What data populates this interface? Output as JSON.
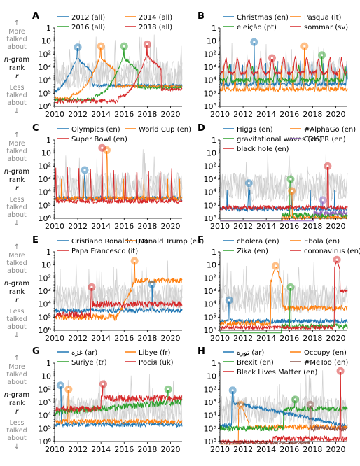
{
  "figure": {
    "side_label": {
      "arrow_up": "↑",
      "more": [
        "More",
        "talked",
        "about"
      ],
      "ngram": "n-gram",
      "rank": "rank",
      "r": "r",
      "less": [
        "Less",
        "talked",
        "about"
      ],
      "arrow_down": "↓"
    }
  },
  "chart_data": [
    {
      "panel": "A",
      "type": "line",
      "x_ticks": [
        2010,
        2012,
        2014,
        2016,
        2018,
        2020
      ],
      "y_ticks": [
        "1",
        "10",
        "10^2",
        "10^3",
        "10^4",
        "10^5",
        "10^6"
      ],
      "ylim": [
        1,
        1000000
      ],
      "y_scale": "log",
      "y_inverted": true,
      "series": [
        {
          "name": "2012 (all)",
          "color": "#1f77b4",
          "peak": [
            2012.0,
            30
          ],
          "base": 100000,
          "shape": "year"
        },
        {
          "name": "2014 (all)",
          "color": "#ff7f0e",
          "peak": [
            2014.0,
            25
          ],
          "base": 120000,
          "shape": "year"
        },
        {
          "name": "2016 (all)",
          "color": "#2ca02c",
          "peak": [
            2016.0,
            25
          ],
          "base": 150000,
          "shape": "year"
        },
        {
          "name": "2018 (all)",
          "color": "#d62728",
          "peak": [
            2018.0,
            18
          ],
          "base": 200000,
          "shape": "year"
        }
      ]
    },
    {
      "panel": "B",
      "type": "line",
      "x_ticks": [
        2010,
        2012,
        2014,
        2016,
        2018,
        2020
      ],
      "y_ticks": [
        "1",
        "10",
        "10^2",
        "10^3",
        "10^4",
        "10^5",
        "10^6"
      ],
      "ylim": [
        1,
        1000000
      ],
      "y_scale": "log",
      "y_inverted": true,
      "series": [
        {
          "name": "Christmas (en)",
          "color": "#1f77b4",
          "peak": [
            2012.95,
            12
          ],
          "base": 20000,
          "shape": "annual_dec"
        },
        {
          "name": "Pasqua (it)",
          "color": "#ff7f0e",
          "peak": [
            2017.3,
            25
          ],
          "base": 50000,
          "shape": "annual_spring"
        },
        {
          "name": "eleição (pt)",
          "color": "#2ca02c",
          "peak": [
            2018.8,
            120
          ],
          "base": 10000,
          "shape": "biennial"
        },
        {
          "name": "sommar (sv)",
          "color": "#d62728",
          "peak": [
            2014.5,
            200
          ],
          "base": 3000,
          "shape": "annual_summer"
        }
      ]
    },
    {
      "panel": "C",
      "type": "line",
      "x_ticks": [
        2010,
        2012,
        2014,
        2016,
        2018,
        2020
      ],
      "y_ticks": [
        "1",
        "10",
        "10^2",
        "10^3",
        "10^4",
        "10^5",
        "10^6"
      ],
      "ylim": [
        1,
        1000000
      ],
      "y_scale": "log",
      "y_inverted": true,
      "series": [
        {
          "name": "Olympics (en)",
          "color": "#1f77b4",
          "peak": [
            2012.6,
            200
          ],
          "base": 30000,
          "shape": "spikes"
        },
        {
          "name": "World Cup (en)",
          "color": "#ff7f0e",
          "peak": [
            2014.5,
            6
          ],
          "base": 30000,
          "shape": "spikes"
        },
        {
          "name": "Super Bowl (en)",
          "color": "#d62728",
          "peak": [
            2014.1,
            4
          ],
          "base": 50000,
          "shape": "annual_feb"
        }
      ]
    },
    {
      "panel": "D",
      "type": "line",
      "x_ticks": [
        2010,
        2012,
        2014,
        2016,
        2018,
        2020
      ],
      "y_ticks": [
        "1",
        "10",
        "10^2",
        "10^3",
        "10^4",
        "10^5",
        "10^6"
      ],
      "ylim": [
        1,
        1000000
      ],
      "y_scale": "log",
      "y_inverted": true,
      "series": [
        {
          "name": "Higgs (en)",
          "color": "#1f77b4",
          "peak": [
            2012.5,
            2000
          ],
          "base": 200000,
          "shape": "spikes"
        },
        {
          "name": "#AlphaGo (en)",
          "color": "#ff7f0e",
          "peak": [
            2016.2,
            8000
          ],
          "base": 800000,
          "shape": "late"
        },
        {
          "name": "gravitational waves (en)",
          "color": "#2ca02c",
          "peak": [
            2016.1,
            1000
          ],
          "base": 600000,
          "shape": "late"
        },
        {
          "name": "CRISPR (en)",
          "color": "#9467bd",
          "peak": [
            2018.9,
            40000
          ],
          "base": 400000,
          "shape": "late"
        },
        {
          "name": "black hole (en)",
          "color": "#d62728",
          "peak": [
            2019.3,
            100
          ],
          "base": 150000,
          "shape": "flat"
        }
      ]
    },
    {
      "panel": "E",
      "type": "line",
      "x_ticks": [
        2010,
        2012,
        2014,
        2016,
        2018,
        2020
      ],
      "y_ticks": [
        "1",
        "10",
        "10^2",
        "10^3",
        "10^4",
        "10^5",
        "10^6"
      ],
      "ylim": [
        1,
        1000000
      ],
      "y_scale": "log",
      "y_inverted": true,
      "series": [
        {
          "name": "Cristiano Ronaldo (pt)",
          "color": "#1f77b4",
          "peak": [
            2018.4,
            300
          ],
          "base": 30000,
          "shape": "flat"
        },
        {
          "name": "Donald Trump (en)",
          "color": "#ff7f0e",
          "peak": [
            2016.9,
            5
          ],
          "base": 100000,
          "shape": "trump"
        },
        {
          "name": "Papa Francesco (it)",
          "color": "#d62728",
          "peak": [
            2013.2,
            500
          ],
          "base": 10000,
          "shape": "pope"
        }
      ]
    },
    {
      "panel": "F",
      "type": "line",
      "x_ticks": [
        2010,
        2012,
        2014,
        2016,
        2018,
        2020
      ],
      "y_ticks": [
        "1",
        "10",
        "10^2",
        "10^3",
        "10^4",
        "10^5",
        "10^6"
      ],
      "ylim": [
        1,
        1000000
      ],
      "y_scale": "log",
      "y_inverted": true,
      "series": [
        {
          "name": "cholera (en)",
          "color": "#1f77b4",
          "peak": [
            2010.8,
            5000
          ],
          "base": 200000,
          "shape": "flat"
        },
        {
          "name": "Ebola (en)",
          "color": "#ff7f0e",
          "peak": [
            2014.8,
            12
          ],
          "base": 300000,
          "shape": "ebola"
        },
        {
          "name": "Zika (en)",
          "color": "#2ca02c",
          "peak": [
            2016.1,
            500
          ],
          "base": 500000,
          "shape": "late"
        },
        {
          "name": "coronavirus (en)",
          "color": "#d62728",
          "peak": [
            2020.1,
            4
          ],
          "base": 600000,
          "shape": "covid"
        }
      ]
    },
    {
      "panel": "G",
      "type": "line",
      "x_ticks": [
        2010,
        2012,
        2014,
        2016,
        2018,
        2020
      ],
      "y_ticks": [
        "1",
        "10",
        "10^2",
        "10^3",
        "10^4",
        "10^5",
        "10^6"
      ],
      "ylim": [
        1,
        1000000
      ],
      "y_scale": "log",
      "y_inverted": true,
      "series": [
        {
          "name": "غزة (ar)",
          "color": "#1f77b4",
          "peak": [
            2010.5,
            50
          ],
          "base": 50000,
          "shape": "flat"
        },
        {
          "name": "Libye (fr)",
          "color": "#ff7f0e",
          "peak": [
            2011.2,
            100
          ],
          "base": 30000,
          "shape": "flat"
        },
        {
          "name": "Suriye (tr)",
          "color": "#2ca02c",
          "peak": [
            2019.8,
            100
          ],
          "base": 5000,
          "shape": "syria"
        },
        {
          "name": "Росія (uk)",
          "color": "#d62728",
          "peak": [
            2014.2,
            40
          ],
          "base": 2000,
          "shape": "russia"
        }
      ]
    },
    {
      "panel": "H",
      "type": "line",
      "x_ticks": [
        2010,
        2012,
        2014,
        2016,
        2018,
        2020
      ],
      "y_ticks": [
        "1",
        "10",
        "10^2",
        "10^3",
        "10^4",
        "10^5",
        "10^6"
      ],
      "ylim": [
        1,
        1000000
      ],
      "y_scale": "log",
      "y_inverted": true,
      "series": [
        {
          "name": "ثورة (ar)",
          "color": "#1f77b4",
          "peak": [
            2011.1,
            120
          ],
          "base": 30000,
          "shape": "revolution"
        },
        {
          "name": "Occupy (en)",
          "color": "#ff7f0e",
          "peak": [
            2011.8,
            1500
          ],
          "base": 300000,
          "shape": "occupy"
        },
        {
          "name": "Brexit (en)",
          "color": "#2ca02c",
          "peak": [
            2016.5,
            600
          ],
          "base": 5000,
          "shape": "brexit"
        },
        {
          "name": "#MeToo (en)",
          "color": "#8c564b",
          "peak": [
            2017.8,
            1500
          ],
          "base": 200000,
          "shape": "metoo"
        },
        {
          "name": "Black Lives Matter (en)",
          "color": "#d62728",
          "peak": [
            2020.4,
            4
          ],
          "base": 600000,
          "shape": "blm"
        }
      ]
    }
  ]
}
